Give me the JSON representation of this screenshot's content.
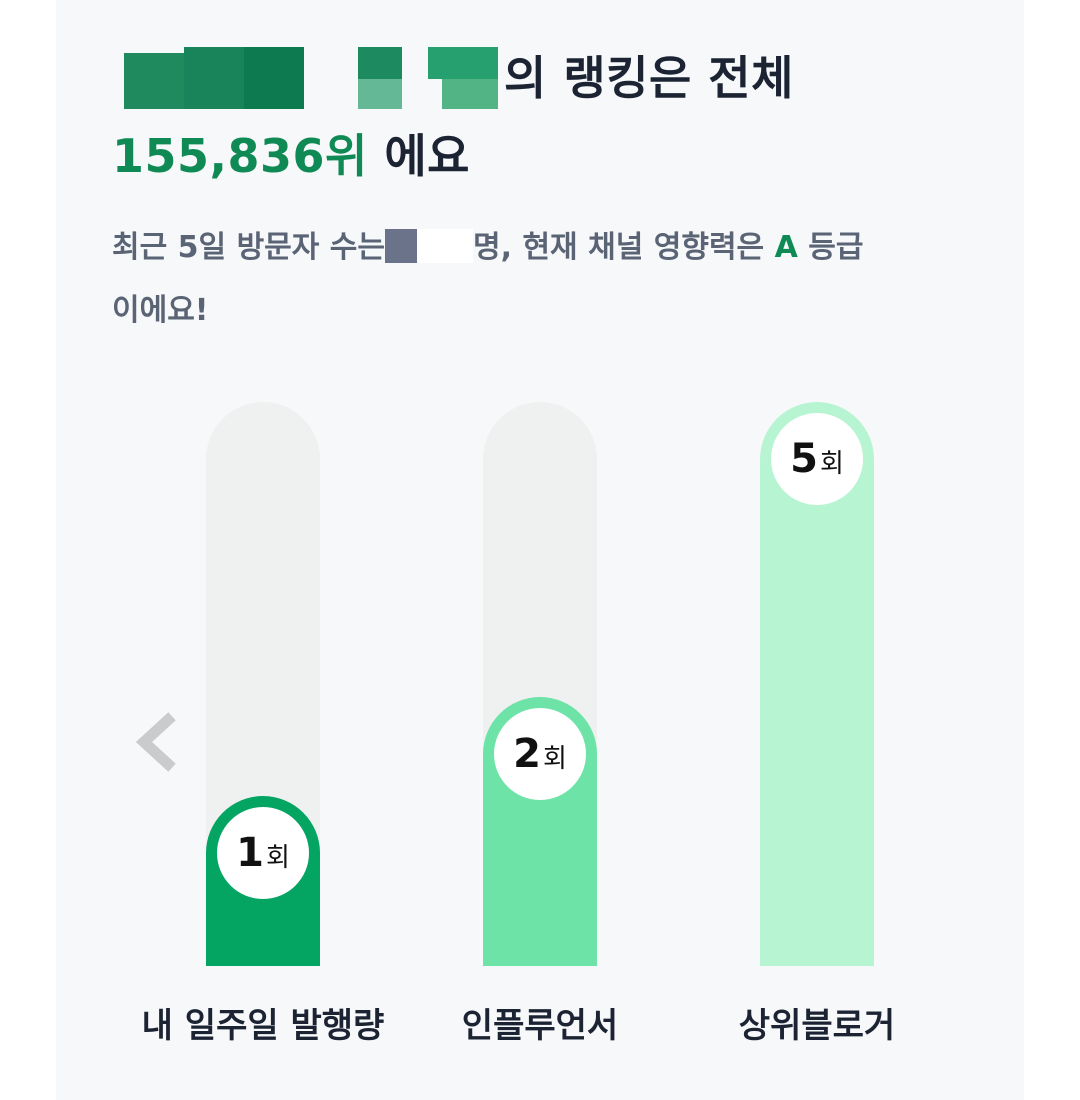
{
  "headline": {
    "line1_suffix": "의 랭킹은 전체",
    "rank": "155,836위",
    "line2_suffix": " 에요"
  },
  "summary": {
    "prefix": "최근 5일 방문자 수는",
    "middle": "명, 현재 채널 영향력은 ",
    "grade": "A",
    "suffix": " 등급",
    "line2": "이에요!"
  },
  "colors": {
    "accent": "#0f8a55",
    "bar_mine": "#04a463",
    "bar_influencer": "#6ee3a8",
    "bar_top": "#b7f5d2",
    "track": "#eff1f0"
  },
  "nav": {
    "prev_icon": "chevron-left-icon"
  },
  "bars": [
    {
      "label": "내 일주일 발행량",
      "value": 1,
      "max": 5,
      "unit": "회"
    },
    {
      "label": "인플루언서",
      "value": 2,
      "max": 5,
      "unit": "회"
    },
    {
      "label": "상위블로거",
      "value": 5,
      "max": 5,
      "unit": "회"
    }
  ]
}
